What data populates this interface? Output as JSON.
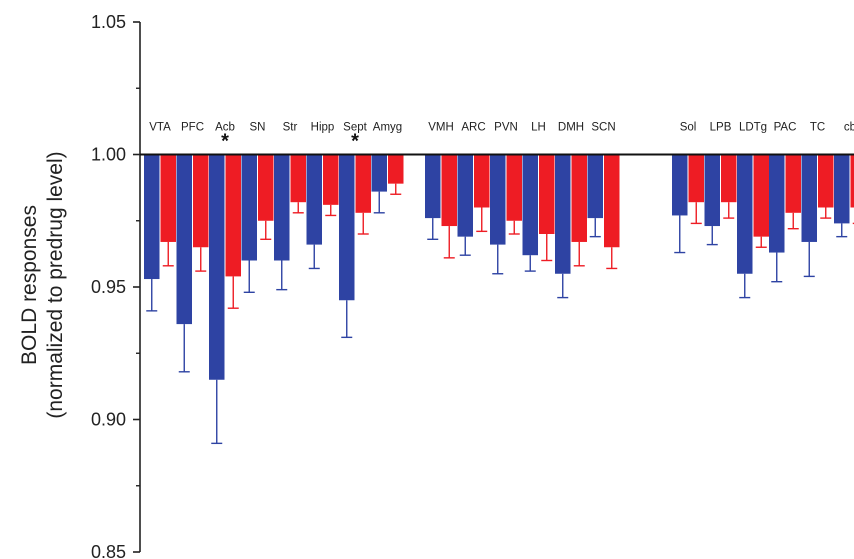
{
  "chart_data": {
    "type": "bar",
    "ylabel_line1": "BOLD responses",
    "ylabel_line2": "(normalized to predrug level)",
    "ylim": [
      0.85,
      1.05
    ],
    "yticks": [
      "0.85",
      "0.90",
      "0.95",
      "1.00",
      "1.05"
    ],
    "baseline": 1.0,
    "categories": [
      "VTA",
      "PFC",
      "Acb",
      "SN",
      "Str",
      "Hipp",
      "Sept",
      "Amyg",
      "VMH",
      "ARC",
      "PVN",
      "LH",
      "DMH",
      "SCN",
      "Sol",
      "LPB",
      "LDTg",
      "PAC",
      "TC",
      "cb"
    ],
    "groups": [
      [
        "VTA",
        "PFC",
        "Acb",
        "SN",
        "Str",
        "Hipp",
        "Sept",
        "Amyg"
      ],
      [
        "VMH",
        "ARC",
        "PVN",
        "LH",
        "DMH",
        "SCN"
      ],
      [
        "Sol",
        "LPB",
        "LDTg"
      ],
      [
        "PAC",
        "TC",
        "cb"
      ]
    ],
    "significance": [
      "Acb",
      "Sept"
    ],
    "significance_mark": "*",
    "series": [
      {
        "color": "#2e43a3",
        "values": [
          0.953,
          0.936,
          0.915,
          0.96,
          0.96,
          0.966,
          0.945,
          0.986,
          0.976,
          0.969,
          0.966,
          0.962,
          0.955,
          0.976,
          0.977,
          0.973,
          0.955,
          0.963,
          0.967,
          0.974
        ],
        "errors": [
          0.012,
          0.018,
          0.024,
          0.012,
          0.011,
          0.009,
          0.014,
          0.008,
          0.008,
          0.007,
          0.011,
          0.006,
          0.009,
          0.007,
          0.014,
          0.007,
          0.009,
          0.011,
          0.013,
          0.005
        ]
      },
      {
        "color": "#ee1c24",
        "values": [
          0.967,
          0.965,
          0.954,
          0.975,
          0.982,
          0.981,
          0.978,
          0.989,
          0.973,
          0.98,
          0.975,
          0.97,
          0.967,
          0.965,
          0.982,
          0.982,
          0.969,
          0.978,
          0.98,
          0.98
        ]
      }
    ]
  }
}
